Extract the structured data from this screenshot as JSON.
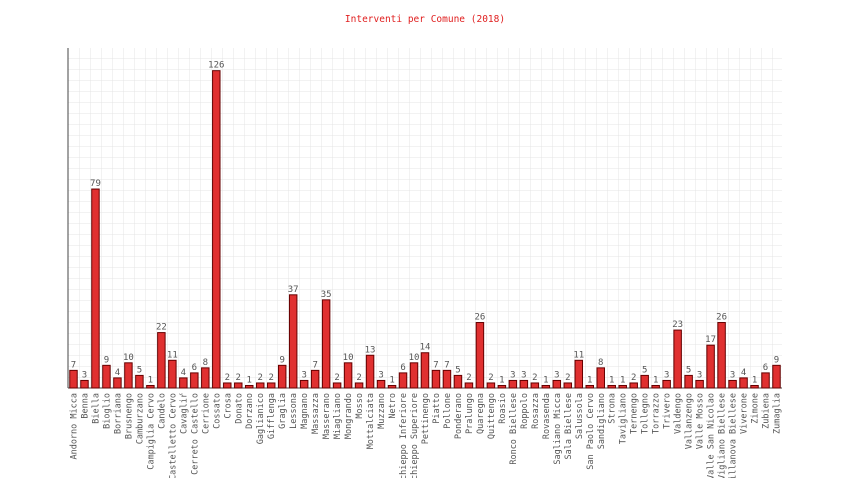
{
  "chart_data": {
    "type": "bar",
    "title": "Interventi per Comune (2018)",
    "categories": [
      "Andorno Micca",
      "Benna",
      "Biella",
      "Bioglio",
      "Borriana",
      "Brusnengo",
      "Camburzano",
      "Campiglia Cervo",
      "Candelo",
      "Castelletto Cervo",
      "Cavagliŕ",
      "Cerreto Castello",
      "Cerrione",
      "Cossato",
      "Crosa",
      "Donato",
      "Dorzano",
      "Gaglianico",
      "Gifflenga",
      "Graglia",
      "Lessona",
      "Magnano",
      "Massazza",
      "Masserano",
      "Miagliano",
      "Mongrando",
      "Mosso",
      "Mottalciata",
      "Muzzano",
      "Netro",
      "chieppo Inferiore",
      "chieppo Superiore",
      "Pettinengo",
      "Piatto",
      "Pollone",
      "Ponderano",
      "Pralungo",
      "Quaregna",
      "Quittengo",
      "Roasio",
      "Ronco Biellese",
      "Roppolo",
      "Rosazza",
      "Rovasenda",
      "Sagliano Micca",
      "Sala Biellese",
      "Salussola",
      "San Paolo Cervo",
      "Sandigliano",
      "Strona",
      "Tavigliano",
      "Ternengo",
      "Tollegno",
      "Torrazzo",
      "Trivero",
      "Valdengo",
      "Vallanzengo",
      "Valle Mosso",
      "Valle San Nicolao",
      "Vigliano Biellese",
      "illanova Biellese",
      "Viverone",
      "Zimone",
      "Zubiena",
      "Zumaglia"
    ],
    "values": [
      7,
      3,
      79,
      9,
      4,
      10,
      5,
      1,
      22,
      11,
      4,
      6,
      8,
      126,
      2,
      2,
      1,
      2,
      2,
      9,
      37,
      3,
      7,
      35,
      2,
      10,
      2,
      13,
      3,
      1,
      6,
      10,
      14,
      7,
      7,
      5,
      2,
      26,
      2,
      1,
      3,
      3,
      2,
      1,
      3,
      2,
      11,
      1,
      8,
      1,
      1,
      2,
      5,
      1,
      3,
      23,
      5,
      3,
      17,
      26,
      3,
      4,
      1,
      6,
      9
    ],
    "color": "#e03030",
    "ylim": [
      0,
      135
    ]
  }
}
